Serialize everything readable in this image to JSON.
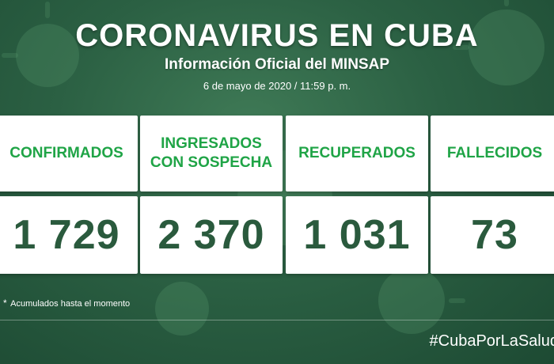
{
  "header": {
    "title": "CORONAVIRUS EN CUBA",
    "subtitle": "Información Oficial del MINSAP",
    "date": "6 de mayo de 2020 / 11:59 p. m."
  },
  "cards": [
    {
      "label": "CONFIRMADOS",
      "value": "1 729",
      "asterisk": "*"
    },
    {
      "label": "INGRESADOS\nCON SOSPECHA",
      "value": "2 370",
      "asterisk": ""
    },
    {
      "label": "RECUPERADOS",
      "value": "1 031",
      "asterisk": "*"
    },
    {
      "label": "FALLECIDOS",
      "value": "73",
      "asterisk": "*"
    }
  ],
  "footnote": {
    "star": "*",
    "text": "Acumulados hasta el momento"
  },
  "hashtag": "#CubaPorLaSalud",
  "colors": {
    "label_green": "#1fa446",
    "value_green": "#2a5a3d",
    "background": "#2b6043"
  }
}
